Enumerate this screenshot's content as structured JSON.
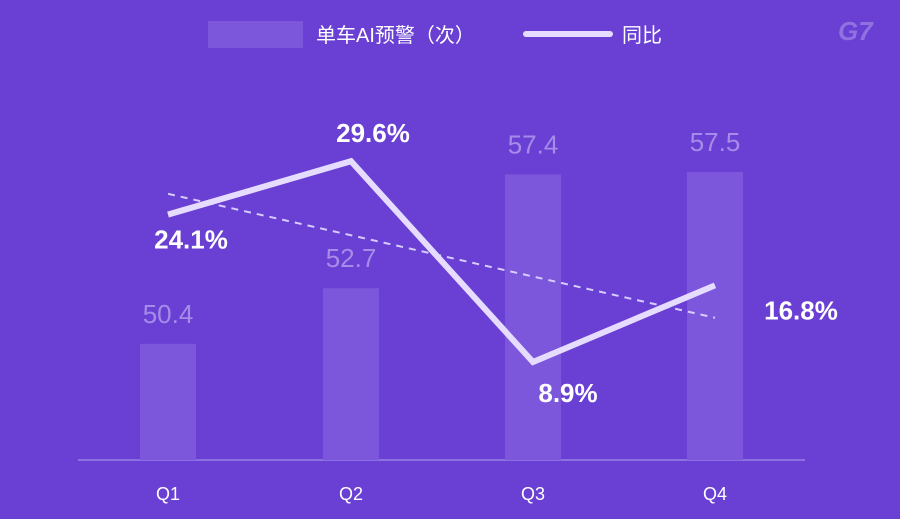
{
  "logo": "G7",
  "chart_data": {
    "type": "bar",
    "categories": [
      "Q1",
      "Q2",
      "Q3",
      "Q4"
    ],
    "series": [
      {
        "name": "单车AI预警（次）",
        "type": "bar",
        "values": [
          50.4,
          52.7,
          57.4,
          57.5
        ],
        "labels": [
          "50.4",
          "52.7",
          "57.4",
          "57.5"
        ],
        "color": "#7c56db"
      },
      {
        "name": "同比",
        "type": "line",
        "values": [
          24.1,
          29.6,
          8.9,
          16.8
        ],
        "labels": [
          "24.1%",
          "29.6%",
          "8.9%",
          "16.8%"
        ],
        "color": "#e6dcff"
      }
    ],
    "trendline": {
      "type": "linear",
      "style": "dashed",
      "series": "同比"
    },
    "legend": "top-center",
    "grid": false,
    "colors": {
      "background": "#6a3fd3",
      "axis": "#9a82e6"
    }
  }
}
